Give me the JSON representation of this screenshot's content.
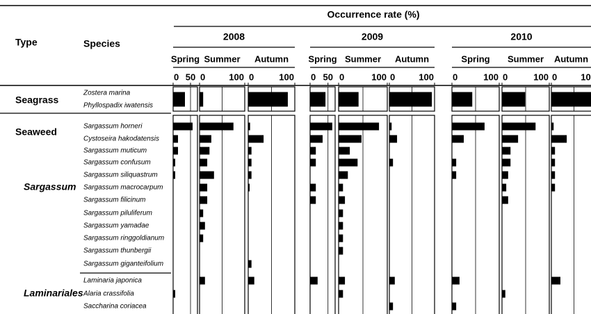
{
  "header": {
    "title": "Occurrence rate (%)",
    "type_label": "Type",
    "species_label": "Species"
  },
  "chart_data": {
    "type": "bar",
    "orientation": "horizontal",
    "types": [
      "Seagrass",
      "Seaweed"
    ],
    "subgroups": [
      "Sargassum",
      "Laminariales"
    ],
    "rows": [
      {
        "species": [
          "Zostera marina",
          "Phyllospadix iwatensis"
        ]
      },
      {
        "species": [
          "Sargassum horneri"
        ]
      },
      {
        "species": [
          "Cystoseira hakodatensis"
        ]
      },
      {
        "species": [
          "Sargassum muticum"
        ]
      },
      {
        "species": [
          "Sargassum confusum"
        ]
      },
      {
        "species": [
          "Sargassum siliquastrum"
        ]
      },
      {
        "species": [
          "Sargassum macrocarpum"
        ]
      },
      {
        "species": [
          "Sargassum filicinum"
        ]
      },
      {
        "species": [
          "Sargassum piluliferum"
        ]
      },
      {
        "species": [
          "Sargassum yamadae"
        ]
      },
      {
        "species": [
          "Sargassum ringgoldianum"
        ]
      },
      {
        "species": [
          "Sargassum thunbergii"
        ]
      },
      {
        "species": [
          "Sargassum giganteifolium"
        ]
      },
      {
        "species": [
          "Laminaria japonica"
        ]
      },
      {
        "species": [
          "Alaria crassifolia"
        ]
      },
      {
        "species": [
          "Saccharina coriacea"
        ]
      }
    ],
    "color": "#000000",
    "years": [
      {
        "label": "2008",
        "panels": [
          {
            "season": "Spring",
            "xlim": [
              0,
              70
            ],
            "xticks": [
              0,
              50
            ],
            "gridlines": [
              50
            ],
            "values": [
              34,
              56,
              14,
              14,
              6,
              6,
              0,
              0,
              0,
              0,
              0,
              0,
              0,
              0,
              6,
              0
            ]
          },
          {
            "season": "Summer",
            "xlim": [
              0,
              100
            ],
            "xticks": [
              0,
              100
            ],
            "gridlines": [
              50
            ],
            "values": [
              8,
              75,
              26,
              22,
              17,
              32,
              17,
              17,
              8,
              12,
              8,
              0,
              0,
              12,
              0,
              0
            ]
          },
          {
            "season": "Autumn",
            "xlim": [
              0,
              100
            ],
            "xticks": [
              0,
              100
            ],
            "gridlines": [
              50
            ],
            "values": [
              85,
              4,
              33,
              7,
              7,
              7,
              3,
              0,
              0,
              0,
              0,
              0,
              7,
              13,
              0,
              0
            ]
          }
        ]
      },
      {
        "label": "2009",
        "panels": [
          {
            "season": "Spring",
            "xlim": [
              0,
              70
            ],
            "xticks": [
              0,
              50
            ],
            "gridlines": [
              50
            ],
            "values": [
              43,
              62,
              35,
              16,
              16,
              0,
              16,
              16,
              0,
              0,
              0,
              0,
              0,
              21,
              0,
              0
            ]
          },
          {
            "season": "Summer",
            "xlim": [
              0,
              100
            ],
            "xticks": [
              0,
              100
            ],
            "gridlines": [
              50
            ],
            "values": [
              41,
              83,
              47,
              23,
              39,
              19,
              9,
              13,
              9,
              9,
              9,
              9,
              0,
              13,
              9,
              0
            ]
          },
          {
            "season": "Autumn",
            "xlim": [
              0,
              100
            ],
            "xticks": [
              0,
              100
            ],
            "gridlines": [
              50
            ],
            "values": [
              94,
              5,
              17,
              0,
              8,
              0,
              0,
              0,
              0,
              0,
              0,
              0,
              0,
              12,
              0,
              8
            ]
          }
        ]
      },
      {
        "label": "2010",
        "panels": [
          {
            "season": "Spring",
            "xlim": [
              0,
              100
            ],
            "xticks": [
              0,
              100
            ],
            "gridlines": [
              50
            ],
            "values": [
              43,
              69,
              25,
              0,
              9,
              9,
              0,
              0,
              0,
              0,
              0,
              0,
              0,
              16,
              0,
              9
            ]
          },
          {
            "season": "Summer",
            "xlim": [
              0,
              100
            ],
            "xticks": [
              0,
              100
            ],
            "gridlines": [
              50
            ],
            "values": [
              49,
              71,
              34,
              18,
              18,
              13,
              9,
              13,
              0,
              0,
              0,
              0,
              0,
              0,
              7,
              0
            ]
          },
          {
            "season": "Autumn",
            "xlim": [
              0,
              100
            ],
            "xticks": [
              0,
              100
            ],
            "gridlines": [
              50
            ],
            "values": [
              95,
              5,
              34,
              8,
              8,
              8,
              8,
              0,
              0,
              0,
              0,
              0,
              0,
              20,
              0,
              0
            ]
          }
        ]
      }
    ]
  }
}
